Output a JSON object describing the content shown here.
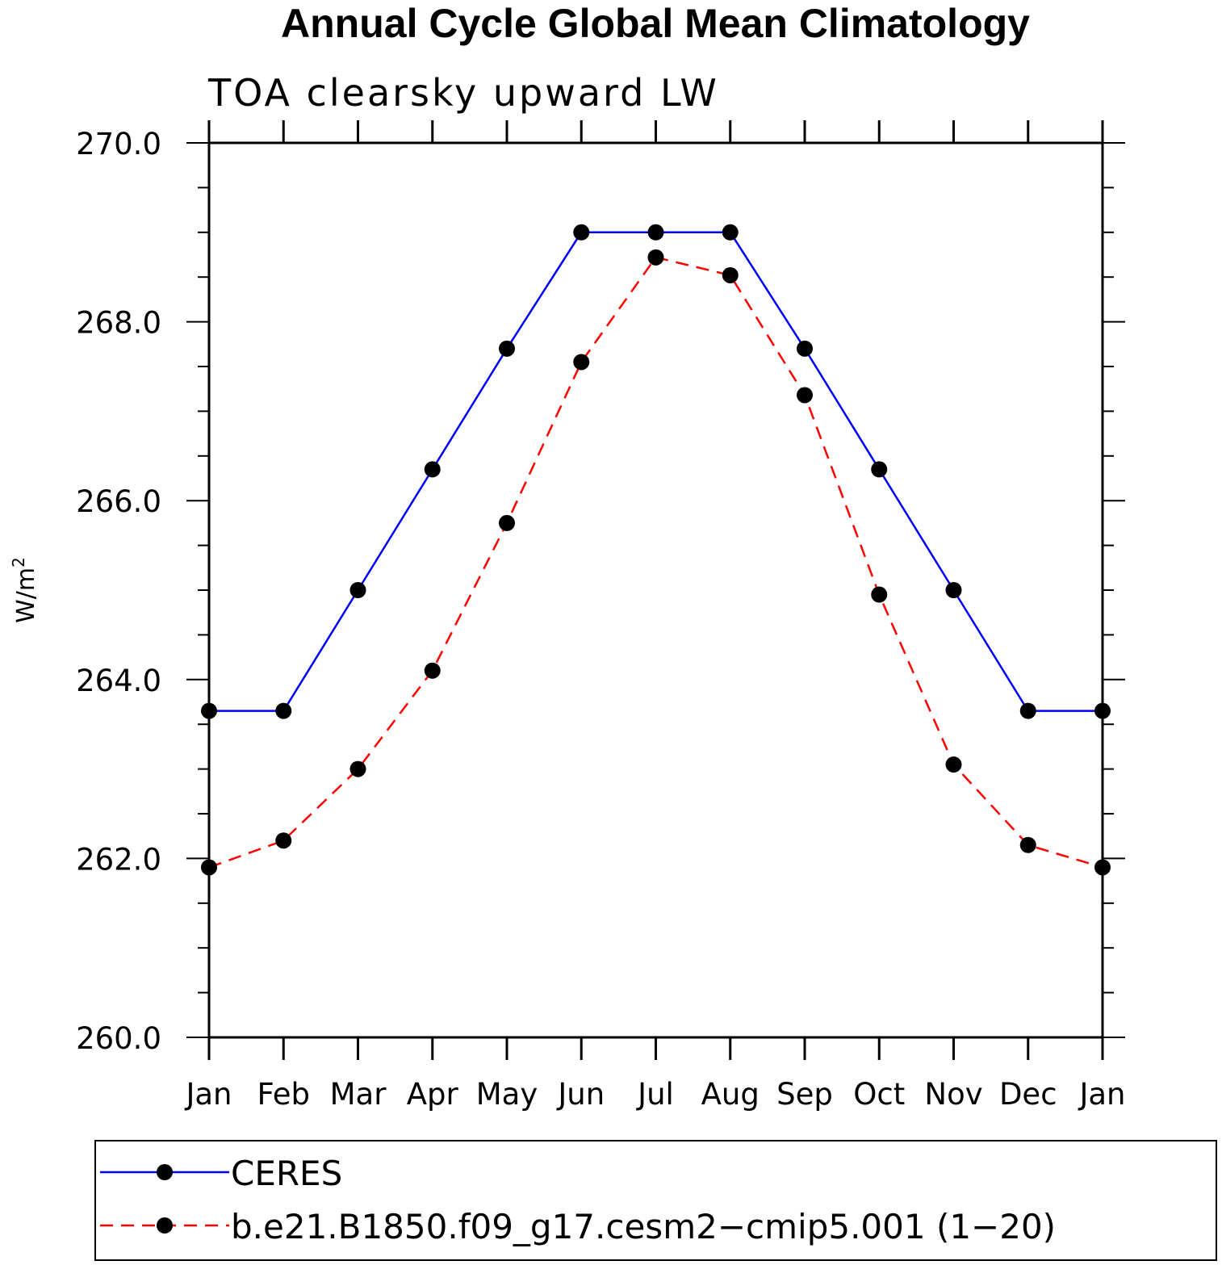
{
  "chart_data": {
    "type": "line",
    "title": "Annual Cycle Global Mean Climatology",
    "subtitle": "TOA clearsky upward LW",
    "xlabel": "",
    "ylabel": "W/m",
    "ylabel_superscript": "2",
    "categories": [
      "Jan",
      "Feb",
      "Mar",
      "Apr",
      "May",
      "Jun",
      "Jul",
      "Aug",
      "Sep",
      "Oct",
      "Nov",
      "Dec",
      "Jan"
    ],
    "ylim": [
      260.0,
      270.0
    ],
    "yticks": [
      "260.0",
      "262.0",
      "264.0",
      "266.0",
      "268.0",
      "270.0"
    ],
    "y_minor_step": 0.5,
    "grid": false,
    "legend_position": "bottom",
    "series": [
      {
        "name": "CERES",
        "color": "#0000ff",
        "style": "solid",
        "values": [
          263.65,
          263.65,
          265.0,
          266.35,
          267.7,
          269.0,
          269.0,
          269.0,
          267.7,
          266.35,
          265.0,
          263.65,
          263.65
        ]
      },
      {
        "name": "b.e21.B1850.f09_g17.cesm2−cmip5.001 (1−20)",
        "color": "#ff0000",
        "style": "dashed",
        "values": [
          261.9,
          262.2,
          263.0,
          264.1,
          265.75,
          267.55,
          268.72,
          268.52,
          267.18,
          264.95,
          263.05,
          262.15,
          261.9
        ]
      }
    ]
  }
}
